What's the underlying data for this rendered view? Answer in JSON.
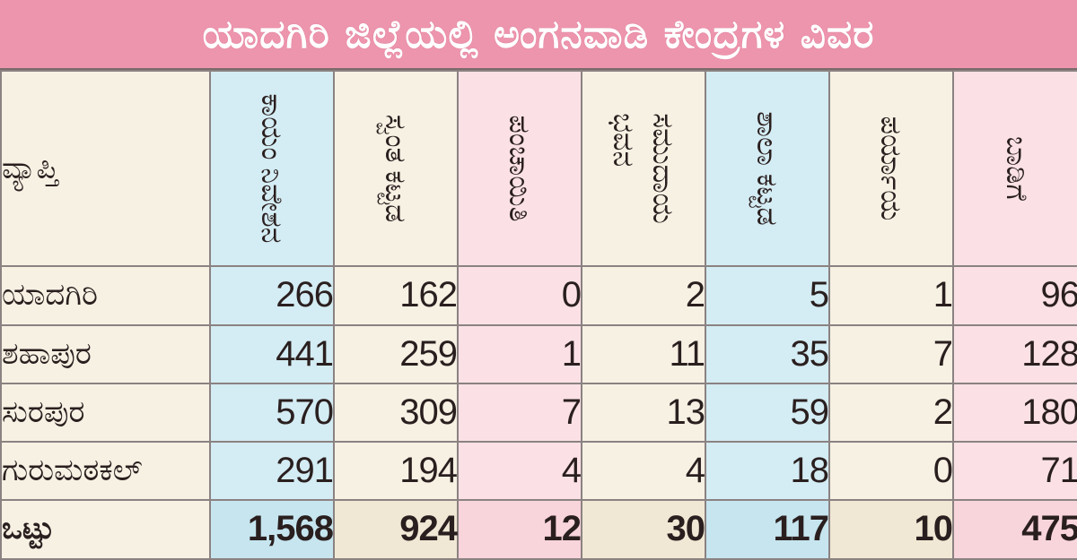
{
  "title": "ಯಾದಗಿರಿ ಜಿಲ್ಲೆಯಲ್ಲಿ ಅಂಗನವಾಡಿ ಕೇಂದ್ರಗಳ ವಿವರ",
  "colors": {
    "title_bg": "#ee95ae",
    "blue_column": "#d4ecf3",
    "cream_column": "#f6f1e3",
    "pink_column": "#fbe1e6",
    "grid_line": "#8b8282"
  },
  "chart_data": {
    "type": "table",
    "title": "ಯಾದಗಿರಿ ಜಿಲ್ಲೆಯಲ್ಲಿ ಅಂಗನವಾಡಿ ಕೇಂದ್ರಗಳ ವಿವರ",
    "row_header": "ವ್ಯಾಪ್ತಿ",
    "columns": [
      {
        "label": "ಕಾಯಂ ನಿವೇಶನ",
        "lines": [
          "ಕಾಯಂ ನಿವೇಶನ"
        ],
        "color": "blue"
      },
      {
        "label": "ಸ್ವಂತ ಕಟ್ಟಡ",
        "lines": [
          "ಸ್ವಂತ ಕಟ್ಟಡ"
        ],
        "color": "cream"
      },
      {
        "label": "ಪಂಚಾಯಿತಿ",
        "lines": [
          "ಪಂಚಾಯಿತಿ"
        ],
        "color": "pink"
      },
      {
        "label": "ಸಮುದಾಯ ಭವನ",
        "lines": [
          "ಸಮುದಾಯ",
          "ಭವನ"
        ],
        "color": "cream"
      },
      {
        "label": "ಶಾಲಾ ಕಟ್ಟಡ",
        "lines": [
          "ಶಾಲಾ ಕಟ್ಟಡ"
        ],
        "color": "blue"
      },
      {
        "label": "ಪರ್ಯಾಯ",
        "lines": [
          "ಪರ್ಯಾಯ"
        ],
        "color": "cream"
      },
      {
        "label": "ಬಾಡಿಗೆ",
        "lines": [
          "ಬಾಡಿಗೆ"
        ],
        "color": "pink"
      }
    ],
    "rows": [
      {
        "label": "ಯಾದಗಿರಿ",
        "values": [
          "266",
          "162",
          "0",
          "2",
          "5",
          "1",
          "96"
        ]
      },
      {
        "label": "ಶಹಾಪುರ",
        "values": [
          "441",
          "259",
          "1",
          "11",
          "35",
          "7",
          "128"
        ]
      },
      {
        "label": "ಸುರಪುರ",
        "values": [
          "570",
          "309",
          "7",
          "13",
          "59",
          "2",
          "180"
        ]
      },
      {
        "label": "ಗುರುಮಠಕಲ್",
        "values": [
          "291",
          "194",
          "4",
          "4",
          "18",
          "0",
          "71"
        ]
      }
    ],
    "total": {
      "label": "ಒಟ್ಟು",
      "values": [
        "1,568",
        "924",
        "12",
        "30",
        "117",
        "10",
        "475"
      ]
    }
  }
}
